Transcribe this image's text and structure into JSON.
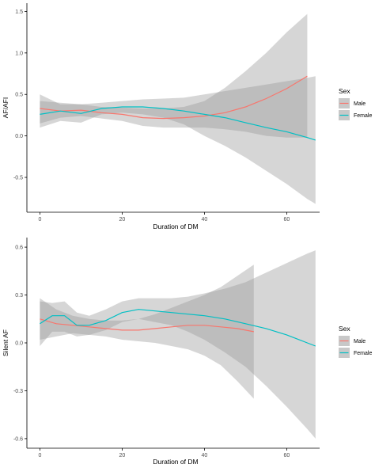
{
  "chart_data": [
    {
      "type": "line",
      "xlabel": "Duration of DM",
      "ylabel": "AF/AFI",
      "xlim": [
        -2,
        68
      ],
      "ylim": [
        -0.92,
        1.6
      ],
      "x_ticks": [
        0,
        20,
        40,
        60
      ],
      "y_ticks": [
        -0.5,
        0.0,
        0.5,
        1.0,
        1.5
      ],
      "y_tick_labels": [
        "-0.5",
        "0.0",
        "0.5",
        "1.0",
        "1.5"
      ],
      "grid": false,
      "legend": {
        "title": "Sex",
        "position": "right"
      },
      "series": [
        {
          "name": "Male",
          "color": "#f8766d",
          "x": [
            0,
            5,
            10,
            15,
            20,
            25,
            30,
            35,
            40,
            45,
            50,
            55,
            60,
            65
          ],
          "y": [
            0.33,
            0.3,
            0.31,
            0.28,
            0.26,
            0.22,
            0.21,
            0.22,
            0.24,
            0.28,
            0.35,
            0.45,
            0.57,
            0.72
          ],
          "ci_lower": [
            0.15,
            0.22,
            0.24,
            0.21,
            0.18,
            0.12,
            0.1,
            0.1,
            0.1,
            0.08,
            0.05,
            0.0,
            -0.02,
            -0.02
          ],
          "ci_upper": [
            0.5,
            0.38,
            0.38,
            0.35,
            0.34,
            0.33,
            0.33,
            0.35,
            0.42,
            0.58,
            0.78,
            1.0,
            1.25,
            1.47
          ]
        },
        {
          "name": "Female",
          "color": "#00bfc4",
          "x": [
            0,
            5,
            10,
            15,
            20,
            25,
            30,
            35,
            40,
            45,
            50,
            55,
            60,
            65,
            67
          ],
          "y": [
            0.26,
            0.3,
            0.27,
            0.33,
            0.35,
            0.35,
            0.33,
            0.3,
            0.26,
            0.22,
            0.16,
            0.1,
            0.05,
            -0.02,
            -0.05
          ],
          "ci_lower": [
            0.1,
            0.18,
            0.16,
            0.26,
            0.28,
            0.26,
            0.22,
            0.14,
            0.0,
            -0.12,
            -0.26,
            -0.42,
            -0.58,
            -0.76,
            -0.82
          ],
          "ci_upper": [
            0.42,
            0.4,
            0.38,
            0.4,
            0.42,
            0.44,
            0.45,
            0.46,
            0.5,
            0.54,
            0.58,
            0.62,
            0.66,
            0.7,
            0.72
          ]
        }
      ]
    },
    {
      "type": "line",
      "xlabel": "Duration of DM",
      "ylabel": "Silent AF",
      "xlim": [
        -2,
        68
      ],
      "ylim": [
        -0.66,
        0.66
      ],
      "x_ticks": [
        0,
        20,
        40,
        60
      ],
      "y_ticks": [
        -0.6,
        -0.3,
        0.0,
        0.3,
        0.6
      ],
      "y_tick_labels": [
        "-0.6",
        "-0.3",
        "0.0",
        "0.3",
        "0.6"
      ],
      "grid": false,
      "legend": {
        "title": "Sex",
        "position": "right"
      },
      "series": [
        {
          "name": "Male",
          "color": "#f8766d",
          "x": [
            0,
            4,
            8,
            12,
            16,
            20,
            24,
            28,
            32,
            36,
            40,
            44,
            48,
            52
          ],
          "y": [
            0.15,
            0.12,
            0.11,
            0.1,
            0.09,
            0.08,
            0.08,
            0.09,
            0.1,
            0.11,
            0.11,
            0.1,
            0.09,
            0.07
          ],
          "ci_lower": [
            0.02,
            0.04,
            0.06,
            0.05,
            0.04,
            0.02,
            0.01,
            0.0,
            -0.02,
            -0.04,
            -0.08,
            -0.14,
            -0.24,
            -0.35
          ],
          "ci_upper": [
            0.28,
            0.21,
            0.17,
            0.15,
            0.14,
            0.14,
            0.15,
            0.18,
            0.22,
            0.26,
            0.3,
            0.35,
            0.42,
            0.49
          ]
        },
        {
          "name": "Female",
          "color": "#00bfc4",
          "x": [
            0,
            3,
            6,
            9,
            12,
            16,
            20,
            24,
            28,
            32,
            36,
            40,
            45,
            50,
            55,
            60,
            65,
            67
          ],
          "y": [
            0.12,
            0.17,
            0.17,
            0.11,
            0.11,
            0.14,
            0.19,
            0.21,
            0.2,
            0.19,
            0.18,
            0.17,
            0.15,
            0.12,
            0.09,
            0.05,
            0.0,
            -0.02
          ],
          "ci_lower": [
            -0.02,
            0.07,
            0.07,
            0.04,
            0.05,
            0.08,
            0.13,
            0.15,
            0.13,
            0.11,
            0.07,
            0.02,
            -0.06,
            -0.15,
            -0.27,
            -0.4,
            -0.54,
            -0.6
          ],
          "ci_upper": [
            0.26,
            0.25,
            0.26,
            0.19,
            0.17,
            0.21,
            0.26,
            0.28,
            0.28,
            0.28,
            0.29,
            0.31,
            0.34,
            0.38,
            0.44,
            0.5,
            0.56,
            0.58
          ]
        }
      ]
    }
  ]
}
